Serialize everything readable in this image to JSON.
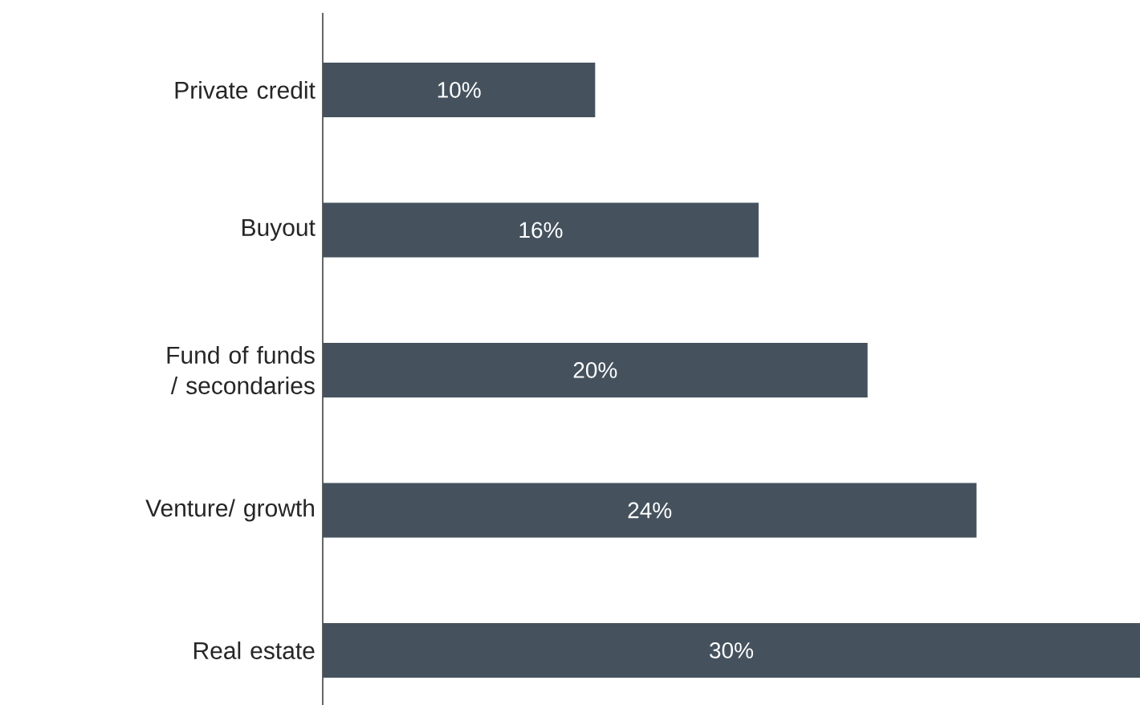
{
  "chart_data": {
    "type": "bar",
    "orientation": "horizontal",
    "categories": [
      "Private credit",
      "Buyout",
      "Fund of funds / secondaries",
      "Venture/ growth",
      "Real estate"
    ],
    "values": [
      10,
      16,
      20,
      24,
      30
    ],
    "value_labels": [
      "10%",
      "16%",
      "20%",
      "24%",
      "30%"
    ],
    "color": "#45525e",
    "tick_labels": "y"
  }
}
